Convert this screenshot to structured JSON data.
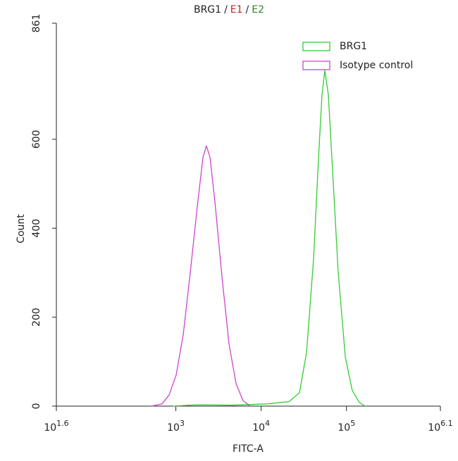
{
  "chart_data": {
    "type": "line",
    "title_parts": [
      {
        "text": "BRG1",
        "color": "#222222"
      },
      {
        "text": "/",
        "color": "#222222"
      },
      {
        "text": "E1",
        "color": "#c0262d"
      },
      {
        "text": "/",
        "color": "#222222"
      },
      {
        "text": "E2",
        "color": "#2a8a2a"
      }
    ],
    "xlabel": "FITC-A",
    "ylabel": "Count",
    "xscale": "log",
    "xlim": [
      39.81,
      1258925
    ],
    "xticks": [
      {
        "value": 39.81,
        "label": "10",
        "sup": "1.6"
      },
      {
        "value": 1000,
        "label": "10",
        "sup": "3"
      },
      {
        "value": 10000,
        "label": "10",
        "sup": "4"
      },
      {
        "value": 100000,
        "label": "10",
        "sup": "5"
      },
      {
        "value": 1258925,
        "label": "10",
        "sup": "6.1"
      }
    ],
    "ylim": [
      0,
      861
    ],
    "yticks": [
      0,
      200,
      400,
      600,
      861
    ],
    "legend": "upper right",
    "series": [
      {
        "name": "BRG1",
        "color": "#33cc33",
        "x": [
          919,
          1786,
          4613,
          11940,
          21130,
          28100,
          33980,
          41110,
          46990,
          51650,
          55720,
          61240,
          68710,
          79980,
          96830,
          117000,
          141600,
          164800
        ],
        "values": [
          0,
          3,
          2,
          5,
          10,
          30,
          120,
          330,
          560,
          700,
          755,
          700,
          530,
          300,
          110,
          35,
          8,
          0
        ]
      },
      {
        "name": "Isotype control",
        "color": "#cc44cc",
        "x": [
          519,
          690,
          834,
          1009,
          1219,
          1475,
          1786,
          2080,
          2286,
          2512,
          2871,
          3475,
          4200,
          5082,
          6138,
          7430
        ],
        "values": [
          0,
          5,
          25,
          70,
          160,
          300,
          450,
          560,
          585,
          560,
          460,
          290,
          140,
          50,
          12,
          0
        ]
      }
    ]
  }
}
